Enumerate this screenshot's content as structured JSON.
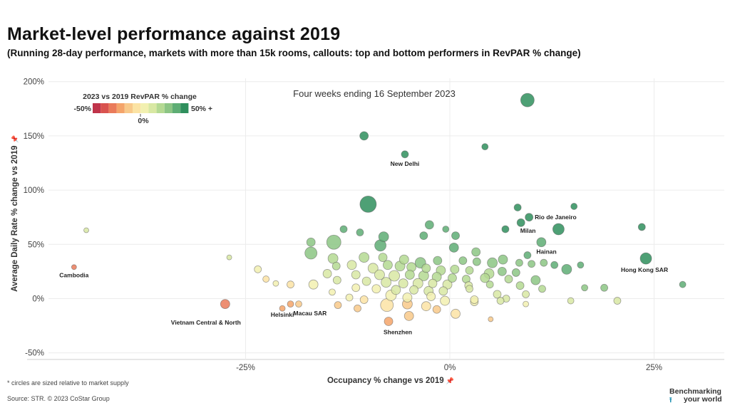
{
  "title": "Market-level performance against 2019",
  "subtitle": "(Running 28-day performance, markets with more than 15k rooms, callouts: top and bottom performers in RevPAR % change)",
  "footnote": "* circles are sized relative to market supply",
  "source": "Source: STR. © 2023 CoStar Group",
  "brand": {
    "line1": "Benchmarking",
    "line2": "your world",
    "arrow_icon": "⭱"
  },
  "colors": {
    "scale": [
      "#c0344a",
      "#d9534f",
      "#ea7b5a",
      "#f4a46a",
      "#f8c98a",
      "#fbe3a4",
      "#f2f0b0",
      "#d8e8a3",
      "#b4d992",
      "#8cc584",
      "#5ead74",
      "#2f8f5d"
    ]
  },
  "chart_data": {
    "type": "scatter",
    "period_label": "Four weeks ending 16 September 2023",
    "xlabel": "Occupancy % change vs 2019",
    "ylabel": "Average Daily Rate % change vs 2019",
    "axis_pin_icon": "📌",
    "xlim": [
      -50,
      34
    ],
    "ylim": [
      -55,
      205
    ],
    "x_ticks": [
      -25,
      0,
      25
    ],
    "x_tick_labels": [
      "-25%",
      "0%",
      "25%"
    ],
    "y_ticks": [
      200,
      150,
      100,
      50,
      0,
      -50
    ],
    "y_tick_labels": [
      "200%",
      "150%",
      "100%",
      "50%",
      "0%",
      "-50%"
    ],
    "grid": true,
    "legend": {
      "title": "2023 vs 2019 RevPAR % change",
      "min_label": "-50%",
      "mid_label": "0%",
      "max_label": "50% +",
      "placement": "top-left"
    },
    "callouts": [
      {
        "label": "New Delhi",
        "x": -5.5,
        "y": 133
      },
      {
        "label": "Rio de Janeiro",
        "x": 9.7,
        "y": 75
      },
      {
        "label": "Milan",
        "x": 8.7,
        "y": 70
      },
      {
        "label": "Hainan",
        "x": 11.2,
        "y": 52
      },
      {
        "label": "Hong Kong SAR",
        "x": 24,
        "y": 37
      },
      {
        "label": "Cambodia",
        "x": -46,
        "y": 29
      },
      {
        "label": "Vietnam Central & North",
        "x": -27.5,
        "y": -5
      },
      {
        "label": "Macau SAR",
        "x": -19.5,
        "y": -5
      },
      {
        "label": "Helsinki",
        "x": -20.5,
        "y": -9
      },
      {
        "label": "Shenzhen",
        "x": -7.5,
        "y": -21
      }
    ],
    "points": [
      {
        "x": 9.5,
        "y": 183,
        "r": 16,
        "rev": 70
      },
      {
        "x": -10.5,
        "y": 150,
        "r": 9,
        "rev": 60
      },
      {
        "x": -5.5,
        "y": 133,
        "r": 7,
        "rev": 60
      },
      {
        "x": 4.3,
        "y": 140,
        "r": 6,
        "rev": 60
      },
      {
        "x": -10,
        "y": 87,
        "r": 20,
        "rev": 60
      },
      {
        "x": 15.2,
        "y": 85,
        "r": 6,
        "rev": 60
      },
      {
        "x": 8.3,
        "y": 84,
        "r": 7,
        "rev": 55
      },
      {
        "x": 9.7,
        "y": 75,
        "r": 8,
        "rev": 55
      },
      {
        "x": 8.7,
        "y": 70,
        "r": 8,
        "rev": 50
      },
      {
        "x": 23.5,
        "y": 66,
        "r": 7,
        "rev": 55
      },
      {
        "x": 13.3,
        "y": 64,
        "r": 13,
        "rev": 55
      },
      {
        "x": 6.8,
        "y": 64,
        "r": 7,
        "rev": 50
      },
      {
        "x": -13,
        "y": 64,
        "r": 7,
        "rev": 45
      },
      {
        "x": -11,
        "y": 61,
        "r": 7,
        "rev": 45
      },
      {
        "x": -2.5,
        "y": 68,
        "r": 9,
        "rev": 45
      },
      {
        "x": -0.5,
        "y": 64,
        "r": 6,
        "rev": 45
      },
      {
        "x": 0.7,
        "y": 58,
        "r": 8,
        "rev": 45
      },
      {
        "x": -3.2,
        "y": 58,
        "r": 8,
        "rev": 45
      },
      {
        "x": -8.1,
        "y": 57,
        "r": 11,
        "rev": 40
      },
      {
        "x": -14.2,
        "y": 52,
        "r": 17,
        "rev": 35
      },
      {
        "x": -17,
        "y": 52,
        "r": 9,
        "rev": 35
      },
      {
        "x": -8.5,
        "y": 49,
        "r": 13,
        "rev": 40
      },
      {
        "x": 0.5,
        "y": 47,
        "r": 10,
        "rev": 40
      },
      {
        "x": 11.2,
        "y": 52,
        "r": 10,
        "rev": 45
      },
      {
        "x": 3.2,
        "y": 43,
        "r": 9,
        "rev": 35
      },
      {
        "x": 9.5,
        "y": 40,
        "r": 7,
        "rev": 40
      },
      {
        "x": 24,
        "y": 37,
        "r": 13,
        "rev": 50
      },
      {
        "x": 28.5,
        "y": 13,
        "r": 6,
        "rev": 40
      },
      {
        "x": -17,
        "y": 42,
        "r": 14,
        "rev": 30
      },
      {
        "x": -14.3,
        "y": 37,
        "r": 11,
        "rev": 20
      },
      {
        "x": -10.5,
        "y": 38,
        "r": 11,
        "rev": 20
      },
      {
        "x": -8.2,
        "y": 38,
        "r": 9,
        "rev": 25
      },
      {
        "x": -5.6,
        "y": 36,
        "r": 10,
        "rev": 25
      },
      {
        "x": -3.6,
        "y": 33,
        "r": 12,
        "rev": 30
      },
      {
        "x": -1.5,
        "y": 35,
        "r": 9,
        "rev": 30
      },
      {
        "x": 1.6,
        "y": 35,
        "r": 8,
        "rev": 30
      },
      {
        "x": 3.3,
        "y": 34,
        "r": 8,
        "rev": 30
      },
      {
        "x": 5.2,
        "y": 33,
        "r": 11,
        "rev": 30
      },
      {
        "x": 6.5,
        "y": 36,
        "r": 10,
        "rev": 35
      },
      {
        "x": 8.5,
        "y": 33,
        "r": 7,
        "rev": 35
      },
      {
        "x": 10,
        "y": 32,
        "r": 7,
        "rev": 35
      },
      {
        "x": 11.5,
        "y": 33,
        "r": 7,
        "rev": 35
      },
      {
        "x": 12.8,
        "y": 31,
        "r": 7,
        "rev": 40
      },
      {
        "x": 14.3,
        "y": 27,
        "r": 11,
        "rev": 40
      },
      {
        "x": 16,
        "y": 31,
        "r": 6,
        "rev": 40
      },
      {
        "x": -13.9,
        "y": 30,
        "r": 8,
        "rev": 20
      },
      {
        "x": -12,
        "y": 31,
        "r": 10,
        "rev": 15
      },
      {
        "x": -9.4,
        "y": 28,
        "r": 11,
        "rev": 15
      },
      {
        "x": -7.6,
        "y": 31,
        "r": 10,
        "rev": 20
      },
      {
        "x": -6.1,
        "y": 30,
        "r": 11,
        "rev": 25
      },
      {
        "x": -4.7,
        "y": 29,
        "r": 10,
        "rev": 25
      },
      {
        "x": -2.9,
        "y": 28,
        "r": 9,
        "rev": 25
      },
      {
        "x": -1.1,
        "y": 26,
        "r": 10,
        "rev": 25
      },
      {
        "x": 0.6,
        "y": 27,
        "r": 9,
        "rev": 25
      },
      {
        "x": 2.4,
        "y": 26,
        "r": 8,
        "rev": 25
      },
      {
        "x": 4.8,
        "y": 23,
        "r": 11,
        "rev": 25
      },
      {
        "x": 6.4,
        "y": 25,
        "r": 9,
        "rev": 30
      },
      {
        "x": 8.1,
        "y": 24,
        "r": 8,
        "rev": 30
      },
      {
        "x": -15,
        "y": 23,
        "r": 9,
        "rev": 15
      },
      {
        "x": -11.5,
        "y": 22,
        "r": 9,
        "rev": 15
      },
      {
        "x": -8.6,
        "y": 22,
        "r": 11,
        "rev": 15
      },
      {
        "x": -6.8,
        "y": 21,
        "r": 12,
        "rev": 15
      },
      {
        "x": -4.9,
        "y": 22,
        "r": 10,
        "rev": 20
      },
      {
        "x": -3.2,
        "y": 21,
        "r": 11,
        "rev": 20
      },
      {
        "x": -1.6,
        "y": 20,
        "r": 10,
        "rev": 20
      },
      {
        "x": 0.3,
        "y": 19,
        "r": 9,
        "rev": 20
      },
      {
        "x": 2,
        "y": 18,
        "r": 8,
        "rev": 20
      },
      {
        "x": 4.3,
        "y": 19,
        "r": 10,
        "rev": 20
      },
      {
        "x": 7.2,
        "y": 18,
        "r": 8,
        "rev": 25
      },
      {
        "x": 10.5,
        "y": 17,
        "r": 10,
        "rev": 30
      },
      {
        "x": -13.8,
        "y": 17,
        "r": 8,
        "rev": 10
      },
      {
        "x": -10.2,
        "y": 16,
        "r": 9,
        "rev": 10
      },
      {
        "x": -7.8,
        "y": 15,
        "r": 11,
        "rev": 10
      },
      {
        "x": -5.7,
        "y": 14,
        "r": 10,
        "rev": 15
      },
      {
        "x": -3.9,
        "y": 14,
        "r": 11,
        "rev": 15
      },
      {
        "x": -2.1,
        "y": 14,
        "r": 9,
        "rev": 15
      },
      {
        "x": -0.3,
        "y": 13,
        "r": 10,
        "rev": 15
      },
      {
        "x": 2.3,
        "y": 12,
        "r": 8,
        "rev": 15
      },
      {
        "x": 4.9,
        "y": 13,
        "r": 7,
        "rev": 20
      },
      {
        "x": 8.6,
        "y": 12,
        "r": 8,
        "rev": 25
      },
      {
        "x": 11.3,
        "y": 9,
        "r": 7,
        "rev": 25
      },
      {
        "x": 16.5,
        "y": 10,
        "r": 6,
        "rev": 30
      },
      {
        "x": 18.9,
        "y": 10,
        "r": 7,
        "rev": 30
      },
      {
        "x": -16.7,
        "y": 13,
        "r": 10,
        "rev": 5
      },
      {
        "x": -11.5,
        "y": 10,
        "r": 8,
        "rev": 5
      },
      {
        "x": -9,
        "y": 9,
        "r": 9,
        "rev": 5
      },
      {
        "x": -6.6,
        "y": 8,
        "r": 10,
        "rev": 10
      },
      {
        "x": -4.4,
        "y": 8,
        "r": 9,
        "rev": 10
      },
      {
        "x": -2.6,
        "y": 7,
        "r": 10,
        "rev": 10
      },
      {
        "x": -0.8,
        "y": 7,
        "r": 9,
        "rev": 10
      },
      {
        "x": 2.4,
        "y": 9,
        "r": 7,
        "rev": 15
      },
      {
        "x": 5.8,
        "y": 4,
        "r": 8,
        "rev": 15
      },
      {
        "x": 6.9,
        "y": 0,
        "r": 7,
        "rev": 10
      },
      {
        "x": 9.3,
        "y": 4,
        "r": 7,
        "rev": 15
      },
      {
        "x": 14.8,
        "y": -2,
        "r": 6,
        "rev": 15
      },
      {
        "x": 20.5,
        "y": -2,
        "r": 7,
        "rev": 15
      },
      {
        "x": -19.5,
        "y": 13,
        "r": 7,
        "rev": -5
      },
      {
        "x": -14.4,
        "y": 6,
        "r": 6,
        "rev": 0
      },
      {
        "x": -12.3,
        "y": 1,
        "r": 7,
        "rev": 0
      },
      {
        "x": -10.5,
        "y": -1,
        "r": 8,
        "rev": -5
      },
      {
        "x": -7.2,
        "y": 3,
        "r": 12,
        "rev": 0
      },
      {
        "x": -5.2,
        "y": 1,
        "r": 10,
        "rev": 0
      },
      {
        "x": -2.3,
        "y": 2,
        "r": 9,
        "rev": 5
      },
      {
        "x": -0.6,
        "y": -2,
        "r": 10,
        "rev": 0
      },
      {
        "x": 3,
        "y": -3,
        "r": 8,
        "rev": 5
      },
      {
        "x": 6.2,
        "y": -2,
        "r": 7,
        "rev": 10
      },
      {
        "x": 9.3,
        "y": -5,
        "r": 5,
        "rev": 5
      },
      {
        "x": -13.7,
        "y": -6,
        "r": 7,
        "rev": -10
      },
      {
        "x": -11.3,
        "y": -9,
        "r": 7,
        "rev": -15
      },
      {
        "x": -7.7,
        "y": -6,
        "r": 15,
        "rev": -5
      },
      {
        "x": -5.2,
        "y": -5,
        "r": 11,
        "rev": -10
      },
      {
        "x": -2.9,
        "y": -7,
        "r": 10,
        "rev": -5
      },
      {
        "x": -1.6,
        "y": -10,
        "r": 8,
        "rev": -10
      },
      {
        "x": 0.7,
        "y": -14,
        "r": 10,
        "rev": -5
      },
      {
        "x": 3,
        "y": -1,
        "r": 8,
        "rev": 0
      },
      {
        "x": 5,
        "y": -19,
        "r": 4,
        "rev": -10
      },
      {
        "x": -5,
        "y": -16,
        "r": 10,
        "rev": -15
      },
      {
        "x": -7.5,
        "y": -21,
        "r": 9,
        "rev": -25
      },
      {
        "x": -19.5,
        "y": -5,
        "r": 6,
        "rev": -20
      },
      {
        "x": -18.5,
        "y": -5,
        "r": 6,
        "rev": -15
      },
      {
        "x": -20.5,
        "y": -9,
        "r": 5,
        "rev": -20
      },
      {
        "x": -27.5,
        "y": -5,
        "r": 10,
        "rev": -35
      },
      {
        "x": -21.3,
        "y": 14,
        "r": 5,
        "rev": 0
      },
      {
        "x": -22.5,
        "y": 18,
        "r": 6,
        "rev": -5
      },
      {
        "x": -23.5,
        "y": 27,
        "r": 7,
        "rev": 5
      },
      {
        "x": -27,
        "y": 38,
        "r": 4,
        "rev": 15
      },
      {
        "x": -44.5,
        "y": 63,
        "r": 4,
        "rev": 15
      },
      {
        "x": -46,
        "y": 29,
        "r": 4,
        "rev": -30
      }
    ]
  }
}
